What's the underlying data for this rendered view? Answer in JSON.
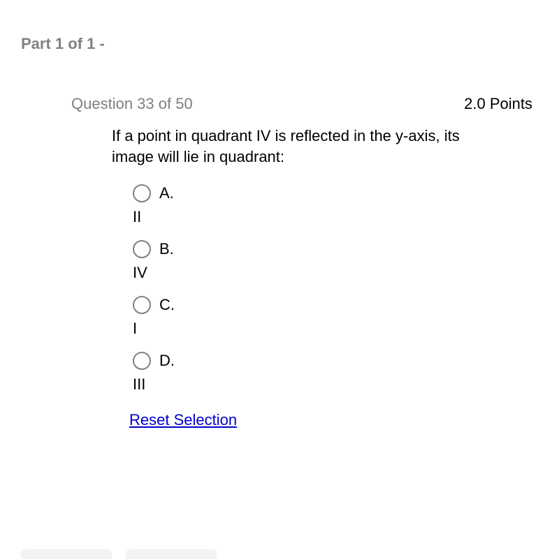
{
  "header": {
    "part_label": "Part 1 of 1 -"
  },
  "question": {
    "label": "Question 33 of 50",
    "points": "2.0 Points",
    "text": "If a point in quadrant IV is reflected in the y-axis, its image will lie in quadrant:"
  },
  "options": [
    {
      "letter": "A.",
      "value": "II"
    },
    {
      "letter": "B.",
      "value": "IV"
    },
    {
      "letter": "C.",
      "value": "I"
    },
    {
      "letter": "D.",
      "value": "III"
    }
  ],
  "reset_label": "Reset Selection"
}
